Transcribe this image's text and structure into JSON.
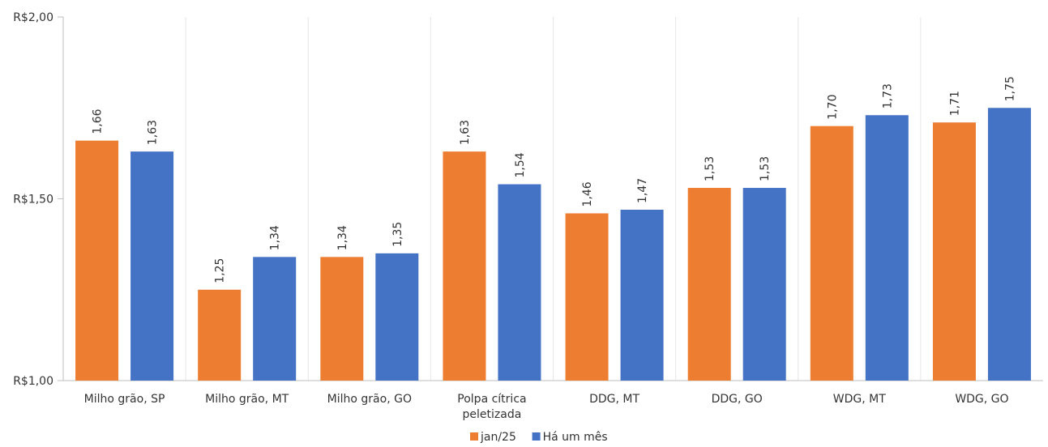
{
  "chart_data": {
    "type": "bar",
    "categories": [
      [
        "Milho grão, SP"
      ],
      [
        "Milho grão, MT"
      ],
      [
        "Milho grão, GO"
      ],
      [
        "Polpa cítrica",
        "peletizada"
      ],
      [
        "DDG, MT"
      ],
      [
        "DDG, GO"
      ],
      [
        "WDG, MT"
      ],
      [
        "WDG, GO"
      ]
    ],
    "series": [
      {
        "name": "jan/25",
        "color": "#ED7D31",
        "values": [
          1.66,
          1.25,
          1.34,
          1.63,
          1.46,
          1.53,
          1.7,
          1.71
        ],
        "labels": [
          "1,66",
          "1,25",
          "1,34",
          "1,63",
          "1,46",
          "1,53",
          "1,70",
          "1,71"
        ]
      },
      {
        "name": "Há um mês",
        "color": "#4472C4",
        "values": [
          1.63,
          1.34,
          1.35,
          1.54,
          1.47,
          1.53,
          1.73,
          1.75
        ],
        "labels": [
          "1,63",
          "1,34",
          "1,35",
          "1,54",
          "1,47",
          "1,53",
          "1,73",
          "1,75"
        ]
      }
    ],
    "ylim": [
      1.0,
      2.0
    ],
    "yticks": [
      {
        "value": 1.0,
        "label": "R$1,00"
      },
      {
        "value": 1.5,
        "label": "R$1,50"
      },
      {
        "value": 2.0,
        "label": "R$2,00"
      }
    ],
    "grid": "vertical category separators",
    "legend_position": "bottom"
  }
}
